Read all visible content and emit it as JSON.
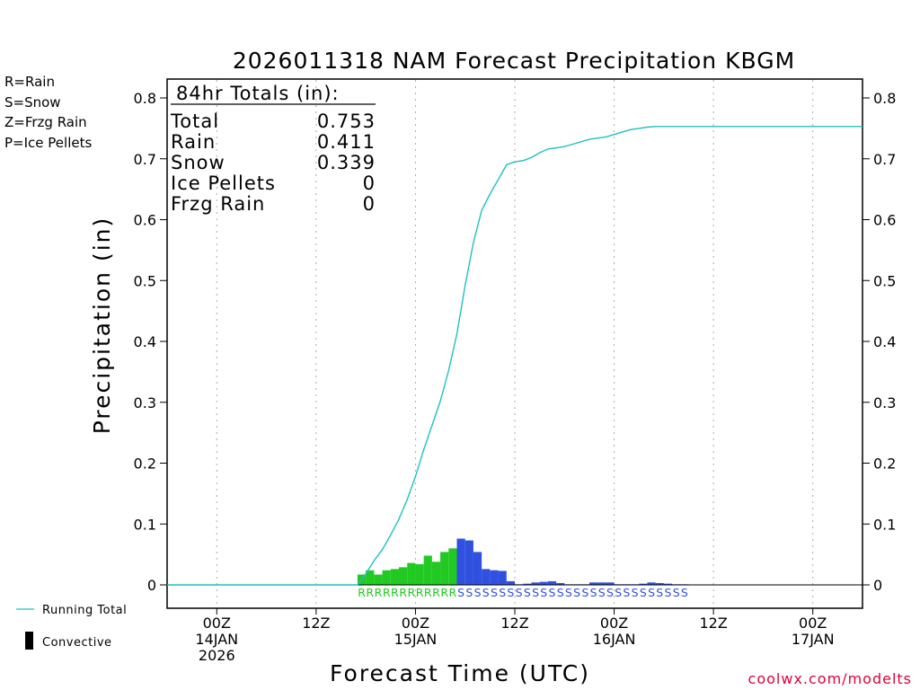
{
  "chart_data": {
    "type": "bar+line",
    "title": "2026011318 NAM Forecast Precipitation KBGM",
    "xlabel": "Forecast Time (UTC)",
    "ylabel": "Precipitation  (in)",
    "ylim": [
      0,
      0.8
    ],
    "yticks": [
      "0",
      "0.1",
      "0.2",
      "0.3",
      "0.4",
      "0.5",
      "0.6",
      "0.7",
      "0.8"
    ],
    "xlim_hours_from_run": [
      0,
      84
    ],
    "xticks": [
      {
        "hour": 6,
        "lines": [
          "00Z",
          "14JAN",
          "2026"
        ]
      },
      {
        "hour": 18,
        "lines": [
          "12Z"
        ]
      },
      {
        "hour": 30,
        "lines": [
          "00Z",
          "15JAN"
        ]
      },
      {
        "hour": 42,
        "lines": [
          "12Z"
        ]
      },
      {
        "hour": 54,
        "lines": [
          "00Z",
          "16JAN"
        ]
      },
      {
        "hour": 66,
        "lines": [
          "12Z"
        ]
      },
      {
        "hour": 78,
        "lines": [
          "00Z",
          "17JAN"
        ]
      }
    ],
    "precip_type_legend": [
      {
        "label": "R=Rain",
        "color": "#22c922"
      },
      {
        "label": "S=Snow",
        "color": "#3050e0"
      },
      {
        "label": "Z=Frzg Rain",
        "color": "#f08a3c"
      },
      {
        "label": "P=Ice Pellets",
        "color": "#e0209a"
      }
    ],
    "totals_box": {
      "header": "84hr Totals (in):",
      "rows": [
        {
          "label": "Total",
          "value": "0.753"
        },
        {
          "label": "Rain",
          "value": "0.411"
        },
        {
          "label": "Snow",
          "value": "0.339"
        },
        {
          "label": "Ice Pellets",
          "value": "0"
        },
        {
          "label": "Frzg Rain",
          "value": "0"
        }
      ]
    },
    "hourly_precip": {
      "start_hour": 23,
      "values": [
        0.017,
        0.024,
        0.017,
        0.024,
        0.026,
        0.029,
        0.036,
        0.034,
        0.048,
        0.038,
        0.054,
        0.06,
        0.076,
        0.073,
        0.054,
        0.026,
        0.024,
        0.023,
        0.006,
        0.001,
        0.002,
        0.004,
        0.005,
        0.006,
        0.003,
        0.001,
        0.001,
        0.001,
        0.004,
        0.004,
        0.004,
        0.001,
        0.001,
        0.001,
        0.002,
        0.004,
        0.003,
        0.002,
        0.001,
        0.001
      ],
      "types": [
        "R",
        "R",
        "R",
        "R",
        "R",
        "R",
        "R",
        "R",
        "R",
        "R",
        "R",
        "R",
        "S",
        "S",
        "S",
        "S",
        "S",
        "S",
        "S",
        "S",
        "S",
        "S",
        "S",
        "S",
        "S",
        "S",
        "S",
        "S",
        "S",
        "S",
        "S",
        "S",
        "S",
        "S",
        "S",
        "S",
        "S",
        "S",
        "S",
        "S"
      ]
    },
    "running_total": {
      "x": [
        0,
        23,
        24,
        25,
        26,
        27,
        28,
        29,
        30,
        31,
        32,
        33,
        34,
        35,
        36,
        37,
        38,
        39,
        40,
        41,
        42,
        43,
        44,
        45,
        46,
        47,
        48,
        49,
        50,
        51,
        52,
        53,
        54,
        55,
        56,
        57,
        58,
        59,
        60,
        61,
        62,
        63,
        84
      ],
      "y": [
        0,
        0,
        0.018,
        0.04,
        0.058,
        0.082,
        0.108,
        0.14,
        0.178,
        0.222,
        0.262,
        0.302,
        0.352,
        0.412,
        0.492,
        0.562,
        0.615,
        0.642,
        0.666,
        0.69,
        0.695,
        0.697,
        0.702,
        0.71,
        0.716,
        0.718,
        0.72,
        0.724,
        0.728,
        0.732,
        0.734,
        0.736,
        0.74,
        0.744,
        0.748,
        0.75,
        0.752,
        0.753,
        0.753,
        0.753,
        0.753,
        0.753,
        0.753
      ]
    },
    "series_legend": {
      "running_total": "Running Total",
      "convective": "Convective"
    },
    "colors": {
      "rain": "#22c922",
      "snow": "#3050e0",
      "running_total": "#20c0c0",
      "credit": "#e0003c"
    },
    "credit": "coolwx.com/modelts"
  }
}
